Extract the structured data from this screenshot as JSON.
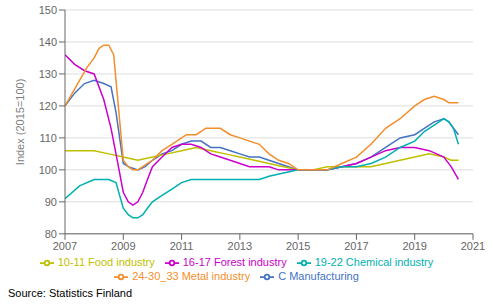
{
  "chart_data": {
    "type": "line",
    "ylabel": "Index (2015=100)",
    "annotations": [
      "Source: Statistics Finland"
    ],
    "xlim": [
      2007.0,
      2021.0
    ],
    "ylim": [
      80,
      150
    ],
    "yticks": [
      80,
      90,
      100,
      110,
      120,
      130,
      140,
      150
    ],
    "xticks": [
      2007,
      2009,
      2011,
      2013,
      2015,
      2017,
      2019,
      2021
    ],
    "grid": true,
    "legend": "bottom",
    "series": [
      {
        "name": "C Manufacturing",
        "color": "#4472C4",
        "x": [
          2007.0,
          2007.33,
          2007.67,
          2008.0,
          2008.33,
          2008.58,
          2008.75,
          2009.0,
          2009.17,
          2009.5,
          2009.75,
          2010.0,
          2010.33,
          2010.67,
          2011.0,
          2011.33,
          2011.67,
          2012.0,
          2012.33,
          2012.67,
          2013.0,
          2013.33,
          2013.67,
          2014.0,
          2014.33,
          2014.67,
          2015.0,
          2015.5,
          2016.0,
          2016.5,
          2017.0,
          2017.5,
          2018.0,
          2018.5,
          2019.0,
          2019.33,
          2019.67,
          2020.0,
          2020.17,
          2020.33,
          2020.5
        ],
        "values": [
          120,
          124,
          127,
          128,
          127,
          126,
          118,
          102,
          101,
          100,
          101,
          103,
          105,
          106,
          108,
          109,
          109,
          107,
          107,
          106,
          105,
          104,
          104,
          103,
          102,
          101,
          100,
          100,
          100,
          101,
          102,
          104,
          107,
          110,
          111,
          113,
          115,
          116,
          115,
          113,
          111
        ]
      },
      {
        "name": "10-11 Food industry",
        "color": "#BFBF00",
        "x": [
          2007.0,
          2007.5,
          2008.0,
          2008.5,
          2009.0,
          2009.5,
          2010.0,
          2010.5,
          2011.0,
          2011.5,
          2012.0,
          2012.5,
          2013.0,
          2013.5,
          2014.0,
          2014.5,
          2015.0,
          2015.5,
          2016.0,
          2016.5,
          2017.0,
          2017.5,
          2018.0,
          2018.5,
          2019.0,
          2019.5,
          2020.0,
          2020.25,
          2020.5
        ],
        "values": [
          106,
          106,
          106,
          105,
          104,
          103,
          104,
          105,
          106,
          107,
          106,
          105,
          104,
          103,
          102,
          101,
          100,
          100,
          101,
          101,
          101,
          101,
          102,
          103,
          104,
          105,
          104,
          103,
          103
        ]
      },
      {
        "name": "16-17 Forest industry",
        "color": "#CC00CC",
        "x": [
          2007.0,
          2007.33,
          2007.67,
          2008.0,
          2008.33,
          2008.58,
          2008.75,
          2009.0,
          2009.17,
          2009.33,
          2009.5,
          2009.67,
          2009.83,
          2010.0,
          2010.33,
          2010.67,
          2011.0,
          2011.33,
          2011.67,
          2012.0,
          2012.33,
          2012.67,
          2013.0,
          2013.33,
          2013.67,
          2014.0,
          2014.33,
          2014.67,
          2015.0,
          2015.5,
          2016.0,
          2016.5,
          2017.0,
          2017.5,
          2018.0,
          2018.5,
          2019.0,
          2019.5,
          2020.0,
          2020.25,
          2020.5
        ],
        "values": [
          136,
          133,
          131,
          130,
          122,
          113,
          105,
          93,
          90,
          89,
          90,
          93,
          97,
          101,
          104,
          107,
          108,
          108,
          107,
          105,
          104,
          103,
          102,
          101,
          101,
          101,
          100,
          100,
          100,
          100,
          100,
          101,
          102,
          104,
          106,
          107,
          107,
          106,
          104,
          101,
          97
        ]
      },
      {
        "name": "19-22 Chemical industry",
        "color": "#00B0B0",
        "x": [
          2007.0,
          2007.5,
          2008.0,
          2008.5,
          2008.75,
          2009.0,
          2009.17,
          2009.33,
          2009.5,
          2009.67,
          2009.83,
          2010.0,
          2010.33,
          2010.67,
          2011.0,
          2011.33,
          2011.67,
          2012.0,
          2012.33,
          2012.67,
          2013.0,
          2013.33,
          2013.67,
          2014.0,
          2014.5,
          2015.0,
          2015.5,
          2016.0,
          2016.5,
          2017.0,
          2017.5,
          2018.0,
          2018.5,
          2019.0,
          2019.33,
          2019.67,
          2020.0,
          2020.17,
          2020.33,
          2020.5
        ],
        "values": [
          91,
          95,
          97,
          97,
          96,
          88,
          86,
          85,
          85,
          86,
          88,
          90,
          92,
          94,
          96,
          97,
          97,
          97,
          97,
          97,
          97,
          97,
          97,
          98,
          99,
          100,
          100,
          100,
          101,
          101,
          102,
          104,
          107,
          109,
          112,
          114,
          116,
          115,
          113,
          108
        ]
      },
      {
        "name": "24-30_33 Metal industry",
        "color": "#F28E2B",
        "x": [
          2007.0,
          2007.25,
          2007.5,
          2007.75,
          2008.0,
          2008.17,
          2008.33,
          2008.5,
          2008.67,
          2008.75,
          2009.0,
          2009.17,
          2009.33,
          2009.5,
          2009.67,
          2009.83,
          2010.0,
          2010.33,
          2010.67,
          2011.0,
          2011.17,
          2011.33,
          2011.5,
          2011.67,
          2011.83,
          2012.0,
          2012.17,
          2012.33,
          2012.5,
          2012.67,
          2013.0,
          2013.33,
          2013.67,
          2014.0,
          2014.33,
          2014.67,
          2015.0,
          2015.5,
          2016.0,
          2016.5,
          2017.0,
          2017.5,
          2018.0,
          2018.5,
          2019.0,
          2019.33,
          2019.67,
          2020.0,
          2020.17,
          2020.33,
          2020.5
        ],
        "values": [
          120,
          124,
          128,
          132,
          135,
          138,
          139,
          139,
          136,
          128,
          103,
          101,
          100,
          100,
          101,
          102,
          103,
          106,
          108,
          110,
          111,
          111,
          111,
          112,
          113,
          113,
          113,
          113,
          112,
          111,
          110,
          109,
          108,
          105,
          103,
          102,
          100,
          100,
          100,
          102,
          104,
          108,
          113,
          116,
          120,
          122,
          123,
          122,
          121,
          121,
          121
        ]
      }
    ]
  }
}
